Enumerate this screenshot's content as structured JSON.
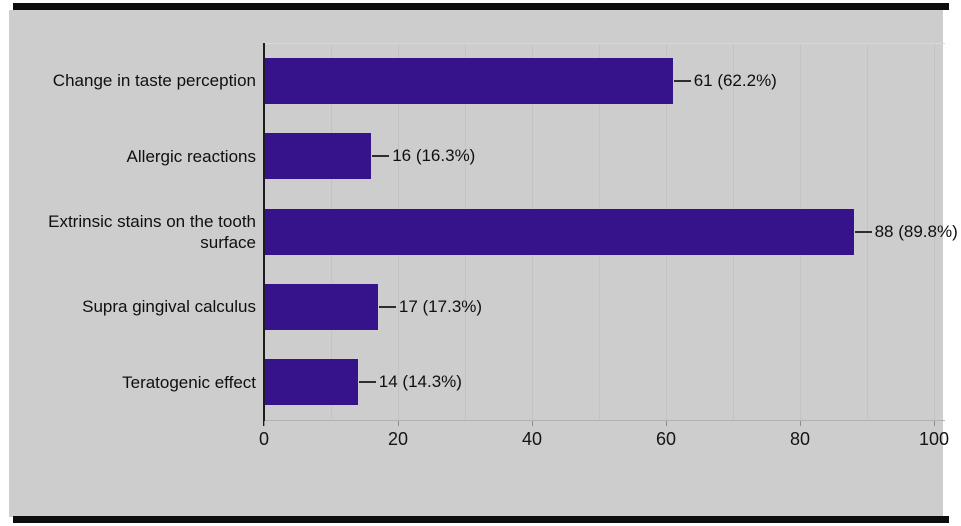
{
  "chart_data": {
    "type": "bar",
    "orientation": "horizontal",
    "title": "",
    "categories": [
      "Change in taste perception",
      "Allergic reactions",
      "Extrinsic stains on the tooth surface",
      "Supra gingival calculus",
      "Teratogenic effect"
    ],
    "values": [
      61,
      16,
      88,
      17,
      14
    ],
    "value_labels": [
      "61 (62.2%)",
      "16 (16.3%)",
      "88 (89.8%)",
      "17 (17.3%)",
      "14 (14.3%)"
    ],
    "x_ticks": [
      0,
      20,
      40,
      60,
      80,
      100
    ],
    "xlim": [
      0,
      100
    ],
    "gridline_interval": 10,
    "grid": "vertical",
    "legend": "none",
    "xlabel": "",
    "ylabel": "",
    "colors": {
      "bar": "#36128b",
      "panel_background": "#cdcdcd",
      "letterbox_band": "#0d0d0d",
      "axis_line": "#1c1c1c",
      "text": "#0f0f0f"
    }
  }
}
